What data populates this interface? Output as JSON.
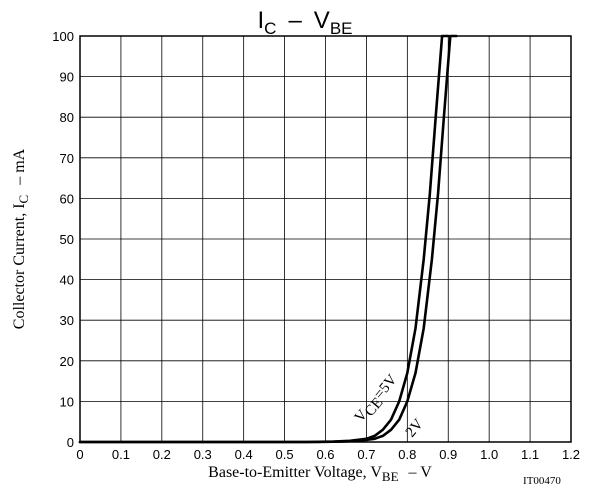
{
  "chart_data": {
    "type": "line",
    "title": {
      "main": "I",
      "sub1": "C",
      "dash": "–",
      "v": "V",
      "sub2": "BE"
    },
    "xlabel": {
      "main": "Base-to-Emitter Voltage, V",
      "sub": "BE",
      "unit": "–  V"
    },
    "ylabel": {
      "main": "Collector Current, I",
      "sub": "C",
      "unit": "–  mA"
    },
    "figure_id": "IT00470",
    "xlim": [
      0,
      1.2
    ],
    "ylim": [
      0,
      100
    ],
    "grid": true,
    "x_ticks": [
      "0",
      "0.1",
      "0.2",
      "0.3",
      "0.4",
      "0.5",
      "0.6",
      "0.7",
      "0.8",
      "0.9",
      "1.0",
      "1.1",
      "1.2"
    ],
    "y_ticks": [
      "0",
      "10",
      "20",
      "30",
      "40",
      "50",
      "60",
      "70",
      "80",
      "90",
      "100"
    ],
    "series": [
      {
        "name": "VCE=5V",
        "x": [
          0,
          0.55,
          0.62,
          0.66,
          0.7,
          0.72,
          0.74,
          0.76,
          0.78,
          0.8,
          0.82,
          0.84,
          0.855,
          0.87,
          0.885,
          0.9
        ],
        "y": [
          0,
          0,
          0.1,
          0.3,
          0.8,
          1.5,
          3,
          5.5,
          10,
          17,
          28,
          45,
          61,
          81,
          100,
          100
        ]
      },
      {
        "name": "2V",
        "x": [
          0,
          0.58,
          0.64,
          0.68,
          0.72,
          0.74,
          0.76,
          0.78,
          0.8,
          0.82,
          0.84,
          0.86,
          0.875,
          0.89,
          0.905,
          0.92
        ],
        "y": [
          0,
          0,
          0.1,
          0.3,
          0.8,
          1.5,
          3,
          5.5,
          10,
          17,
          28,
          45,
          61,
          81,
          100,
          100
        ]
      }
    ],
    "annotations": [
      {
        "v": "V",
        "sub": "CE",
        "rest": "=5V"
      },
      {
        "text": "2V"
      }
    ]
  }
}
